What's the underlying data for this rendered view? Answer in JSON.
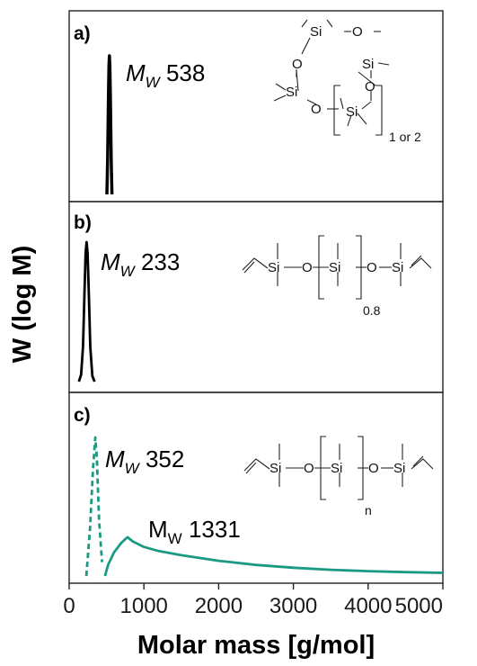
{
  "chart_data": {
    "type": "line",
    "xlabel": "Molar mass [g/mol]",
    "ylabel": "W (log M)",
    "xlim": [
      0,
      5000
    ],
    "xticks": [
      "0",
      "1000",
      "2000",
      "3000",
      "4000",
      "5000"
    ],
    "grid": false,
    "panels": [
      {
        "label": "a)",
        "mw_prefix": "M",
        "mw_subscript": "W",
        "mw_value": "538",
        "series": [
          {
            "style": "solid",
            "color": "#000000",
            "x": [
              505,
              515,
              525,
              532,
              538,
              545,
              552,
              562,
              572
            ],
            "y": [
              0.0,
              0.25,
              0.7,
              0.93,
              1.0,
              0.93,
              0.7,
              0.25,
              0.0
            ]
          }
        ],
        "structure": {
          "atoms": [
            "Si",
            "O",
            "Si",
            "O",
            "Si",
            "O",
            "Si",
            "O"
          ],
          "repeat": "1 or 2"
        }
      },
      {
        "label": "b)",
        "mw_prefix": "M",
        "mw_subscript": "W",
        "mw_value": "233",
        "series": [
          {
            "style": "solid",
            "color": "#000000",
            "x": [
              130,
              160,
              185,
              205,
              220,
              233,
              246,
              262,
              282,
              310,
              340
            ],
            "y": [
              0.0,
              0.05,
              0.25,
              0.65,
              0.92,
              1.0,
              0.92,
              0.65,
              0.25,
              0.04,
              0.0
            ]
          }
        ],
        "structure": {
          "atoms": [
            "Si",
            "O",
            "Si",
            "O",
            "Si"
          ],
          "repeat": "0.8"
        }
      },
      {
        "label": "c)",
        "mw_prefix": "M",
        "mw_subscript": "W",
        "mw_value": "352",
        "mw2_prefix": "M",
        "mw2_subscript": "W",
        "mw2_value": "1331",
        "series": [
          {
            "style": "dashed",
            "color": "#1a9a82",
            "x": [
              230,
              280,
              320,
              350,
              370,
              400,
              440
            ],
            "y": [
              0.0,
              0.35,
              0.78,
              1.0,
              0.85,
              0.4,
              0.1
            ]
          },
          {
            "style": "solid",
            "color": "#1a9a82",
            "x": [
              480,
              520,
              600,
              700,
              780,
              850,
              1000,
              1200,
              1500,
              2000,
              2500,
              3000,
              3500,
              4000,
              4500,
              5000
            ],
            "y": [
              0.0,
              0.08,
              0.17,
              0.24,
              0.28,
              0.25,
              0.21,
              0.18,
              0.15,
              0.11,
              0.08,
              0.06,
              0.045,
              0.035,
              0.028,
              0.023
            ]
          }
        ],
        "structure": {
          "atoms": [
            "Si",
            "O",
            "Si",
            "O",
            "Si"
          ],
          "repeat": "n"
        }
      }
    ]
  }
}
